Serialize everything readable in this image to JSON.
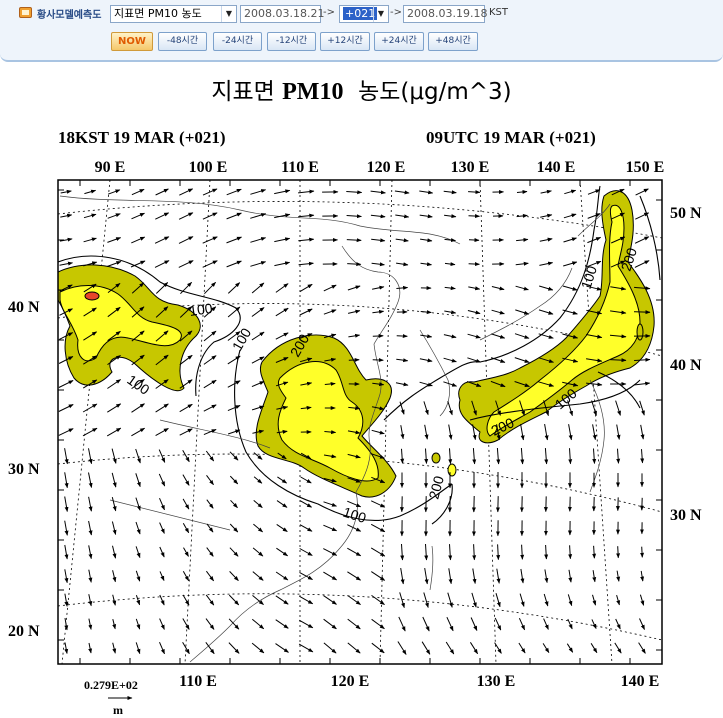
{
  "toolbar": {
    "app_title": "황사모델예측도",
    "variable_select": "지표면 PM10 농도",
    "start_date": "2008.03.18.21",
    "forecast_select": "+021",
    "valid_date": "2008.03.19.18",
    "timezone_label": "KST",
    "arrow": "->",
    "now_label": "NOW",
    "step_buttons": [
      "-48시간",
      "-24시간",
      "-12시간",
      "+12시간",
      "+24시간",
      "+48시간"
    ]
  },
  "map": {
    "title_prefix": "지표면 ",
    "title_bold": "PM10",
    "title_suffix": "  농도(μg/m^3)",
    "time_left": "18KST 19 MAR (+021)",
    "time_right": "09UTC 19 MAR (+021)",
    "top_lon_labels": [
      "90 E",
      "100 E",
      "110 E",
      "120 E",
      "130 E",
      "140 E",
      "150 E"
    ],
    "bottom_lon_labels": [
      "110 E",
      "120 E",
      "130 E",
      "140 E"
    ],
    "left_lat_labels": [
      "40 N",
      "30 N",
      "20 N"
    ],
    "right_lat_labels": [
      "50 N",
      "40 N",
      "30 N"
    ],
    "contour_labels": [
      "100",
      "100",
      "200",
      "100",
      "200",
      "200",
      "100",
      "200",
      "100",
      "100"
    ],
    "wind_scale_value": "0.279E+02",
    "wind_scale_unit": "m",
    "colors": {
      "level_100": "#c7c700",
      "level_200": "#ffff29",
      "level_400": "#e8462a",
      "vector": "#000000"
    }
  }
}
